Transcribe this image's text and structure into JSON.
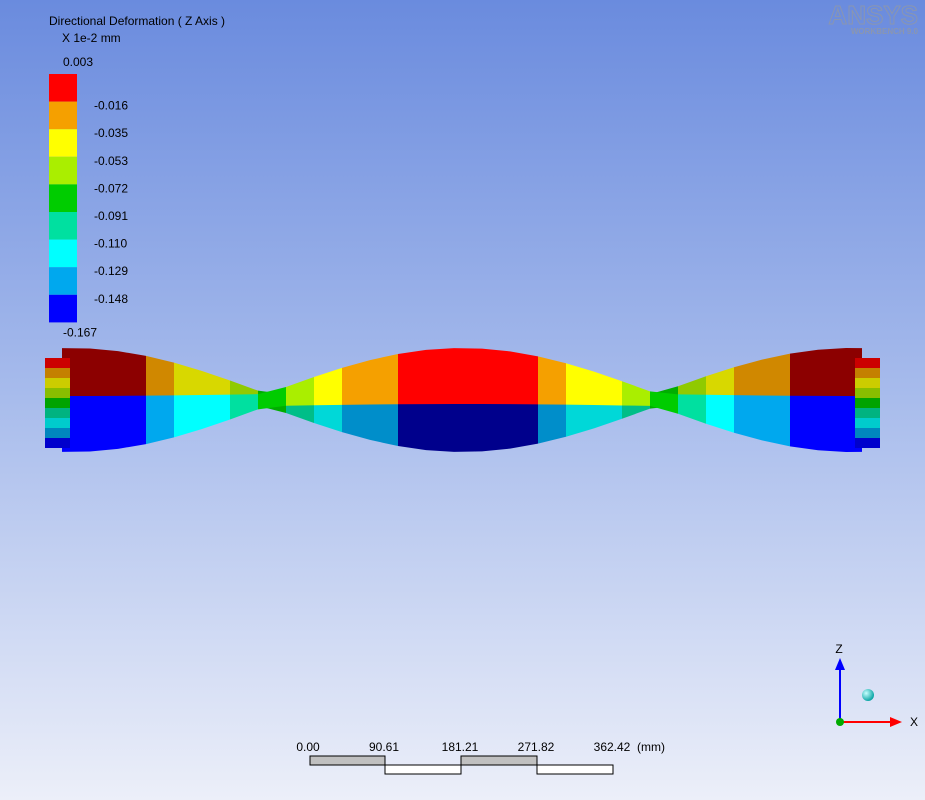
{
  "header": {
    "title": "Directional Deformation ( Z Axis )",
    "units": "X 1e-2 mm"
  },
  "legend": {
    "labels": [
      "0.003",
      "-0.016",
      "-0.035",
      "-0.053",
      "-0.072",
      "-0.091",
      "-0.110",
      "-0.129",
      "-0.148",
      "-0.167"
    ],
    "colors": [
      "#ff0000",
      "#f5a000",
      "#ffff00",
      "#aaee00",
      "#00cc00",
      "#00e0a0",
      "#00ffff",
      "#00a8ee",
      "#0000ff"
    ]
  },
  "logo": {
    "name": "ANSYS",
    "version": "WORKBENCH 9.0"
  },
  "scale_bar": {
    "labels": [
      "0.00",
      "90.61",
      "181.21",
      "271.82",
      "362.42"
    ],
    "unit": "(mm)"
  },
  "triad": {
    "z": "Z",
    "x": "X"
  }
}
